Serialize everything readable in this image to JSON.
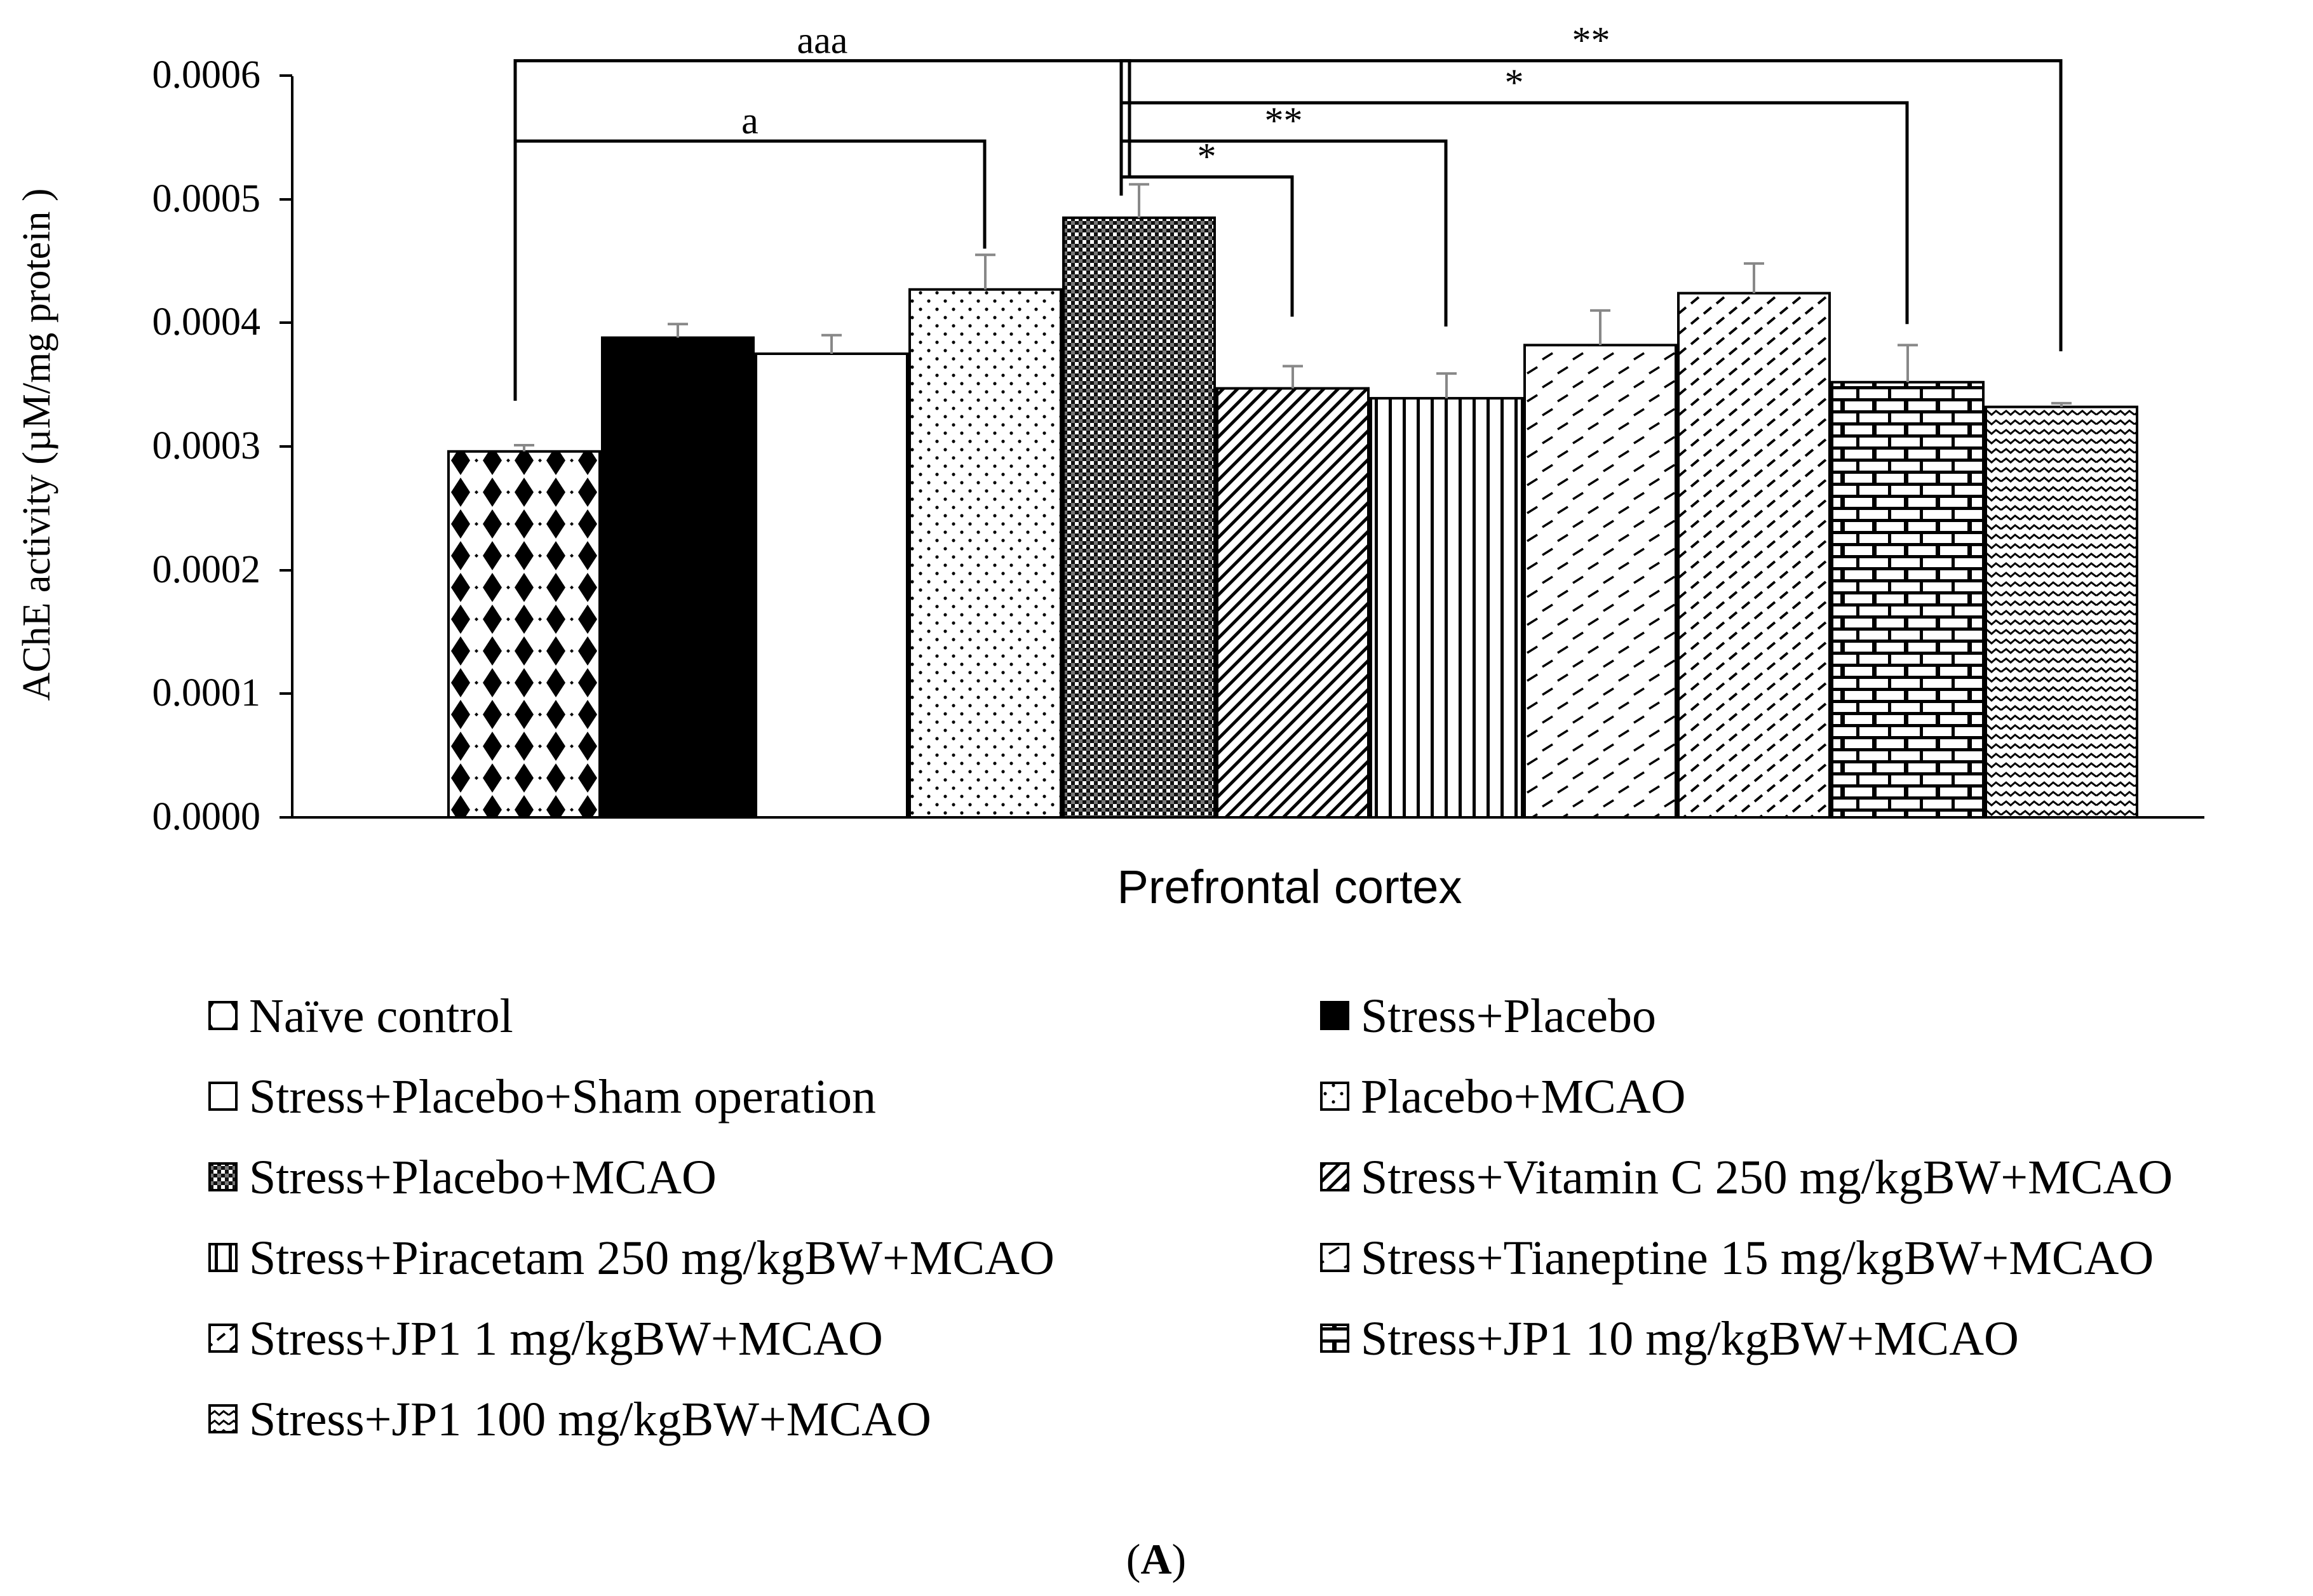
{
  "chart_data": {
    "type": "bar",
    "xlabel": "Prefrontal cortex",
    "ylabel": "AChE activity (µM/mg protein )",
    "ylim": [
      0,
      0.0006
    ],
    "yticks": [
      "0.0000",
      "0.0001",
      "0.0002",
      "0.0003",
      "0.0004",
      "0.0005",
      "0.0006"
    ],
    "legend_position": "bottom",
    "panel_label": "A",
    "series": [
      {
        "name": "Naïve control",
        "value": 0.000296,
        "error": 5e-06,
        "pattern": "diamond"
      },
      {
        "name": "Stress+Placebo",
        "value": 0.000388,
        "error": 1.1e-05,
        "pattern": "solid"
      },
      {
        "name": "Stress+Placebo+Sham operation",
        "value": 0.000375,
        "error": 1.5e-05,
        "pattern": "white"
      },
      {
        "name": "Placebo+MCAO",
        "value": 0.000427,
        "error": 2.8e-05,
        "pattern": "dots"
      },
      {
        "name": "Stress+Placebo+MCAO",
        "value": 0.000485,
        "error": 2.7e-05,
        "pattern": "check"
      },
      {
        "name": "Stress+Vitamin C 250 mg/kgBW+MCAO",
        "value": 0.000347,
        "error": 1.8e-05,
        "pattern": "diagonal"
      },
      {
        "name": "Stress+Piracetam 250 mg/kgBW+MCAO",
        "value": 0.000339,
        "error": 2e-05,
        "pattern": "vertical"
      },
      {
        "name": "Stress+Tianeptine 15 mg/kgBW+MCAO",
        "value": 0.000382,
        "error": 2.8e-05,
        "pattern": "dash"
      },
      {
        "name": "Stress+JP1 1 mg/kgBW+MCAO",
        "value": 0.000424,
        "error": 2.4e-05,
        "pattern": "dash2"
      },
      {
        "name": "Stress+JP1 10 mg/kgBW+MCAO",
        "value": 0.000352,
        "error": 3e-05,
        "pattern": "brick"
      },
      {
        "name": "Stress+JP1 100 mg/kgBW+MCAO",
        "value": 0.000332,
        "error": 3e-06,
        "pattern": "zigzag"
      }
    ],
    "significance": [
      {
        "from": 0,
        "to": 4,
        "label": "aaa",
        "level": 0.000612,
        "drop_from": 0.000337,
        "drop_to": 0.000517
      },
      {
        "from": 0,
        "to": 3,
        "label": "a",
        "level": 0.000547,
        "drop_from": 0.000337,
        "drop_to": 0.00046
      },
      {
        "from": 4,
        "to": 10,
        "label": "**",
        "level": 0.000612,
        "drop_from": 0.000503,
        "drop_to": 0.000377
      },
      {
        "from": 4,
        "to": 9,
        "label": "*",
        "level": 0.000578,
        "drop_from": 0.000503,
        "drop_to": 0.000399
      },
      {
        "from": 4,
        "to": 6,
        "label": "**",
        "level": 0.000547,
        "drop_from": 0.000503,
        "drop_to": 0.000397
      },
      {
        "from": 4,
        "to": 5,
        "label": "*",
        "level": 0.000518,
        "drop_from": 0.000503,
        "drop_to": 0.000405
      }
    ]
  }
}
